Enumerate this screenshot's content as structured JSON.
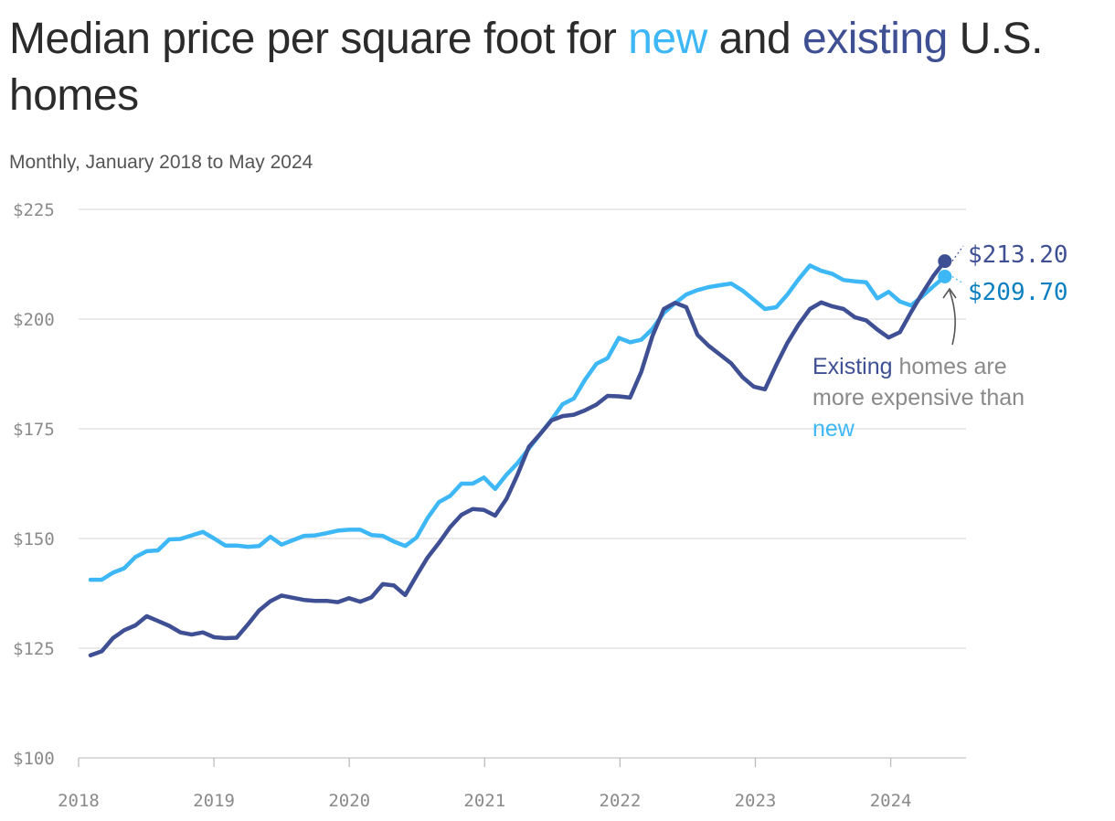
{
  "title": {
    "part1": "Median price per square foot for ",
    "new_word": "new",
    "part2": " and ",
    "existing_word": "existing",
    "part3": " U.S. homes"
  },
  "subtitle": "Monthly, January 2018 to May 2024",
  "annotation": {
    "existing_word": "Existing",
    "part1": " homes are more expensive than ",
    "new_word": "new"
  },
  "colors": {
    "new": "#3db7f5",
    "existing": "#3f4f94",
    "new_label": "#0b7fc0",
    "grid": "#dedede"
  },
  "chart_data": {
    "type": "line",
    "title": "Median price per square foot for new and existing U.S. homes",
    "subtitle": "Monthly, January 2018 to May 2024",
    "x_start": "2018-01",
    "x_end": "2024-05",
    "x_ticks": [
      "2018",
      "2019",
      "2020",
      "2021",
      "2022",
      "2023",
      "2024"
    ],
    "y_ticks": [
      "$100",
      "$125",
      "$150",
      "$175",
      "$200",
      "$225"
    ],
    "ylim": [
      100,
      225
    ],
    "grid": true,
    "series": [
      {
        "name": "new",
        "color": "#3db7f5",
        "end_label": "$209.70",
        "values": [
          140.6,
          140.6,
          142.2,
          143.2,
          145.8,
          147.1,
          147.3,
          149.8,
          149.9,
          150.7,
          151.5,
          150.0,
          148.4,
          148.4,
          148.1,
          148.3,
          150.4,
          148.6,
          149.6,
          150.6,
          150.7,
          151.2,
          151.8,
          152.0,
          152.0,
          150.8,
          150.6,
          149.3,
          148.3,
          150.2,
          154.7,
          158.3,
          159.7,
          162.5,
          162.5,
          163.9,
          161.3,
          164.5,
          167.2,
          170.5,
          173.8,
          177.0,
          180.6,
          181.9,
          186.2,
          189.8,
          191.1,
          195.7,
          194.7,
          195.3,
          197.8,
          201.4,
          203.6,
          205.6,
          206.6,
          207.3,
          207.7,
          208.1,
          206.5,
          204.4,
          202.3,
          202.7,
          205.6,
          209.1,
          212.2,
          211.0,
          210.3,
          208.9,
          208.6,
          208.4,
          204.7,
          206.2,
          204.0,
          203.1,
          205.2,
          207.5,
          209.7
        ]
      },
      {
        "name": "existing",
        "color": "#3f4f94",
        "end_label": "$213.20",
        "values": [
          123.4,
          124.3,
          127.3,
          129.1,
          130.2,
          132.3,
          131.2,
          130.1,
          128.6,
          128.1,
          128.6,
          127.5,
          127.3,
          127.4,
          130.4,
          133.6,
          135.7,
          137.0,
          136.5,
          136.0,
          135.8,
          135.8,
          135.5,
          136.4,
          135.6,
          136.6,
          139.6,
          139.3,
          137.1,
          141.5,
          145.7,
          149.0,
          152.6,
          155.4,
          156.7,
          156.5,
          155.2,
          159.0,
          164.6,
          170.9,
          173.8,
          176.9,
          177.9,
          178.2,
          179.2,
          180.5,
          182.5,
          182.4,
          182.1,
          188.0,
          196.2,
          202.3,
          203.7,
          202.7,
          196.4,
          193.9,
          191.9,
          189.9,
          186.8,
          184.6,
          184.0,
          189.5,
          194.6,
          198.8,
          202.3,
          203.8,
          202.9,
          202.3,
          200.4,
          199.7,
          197.6,
          195.8,
          197.0,
          201.6,
          205.9,
          209.9,
          213.2
        ]
      }
    ]
  }
}
